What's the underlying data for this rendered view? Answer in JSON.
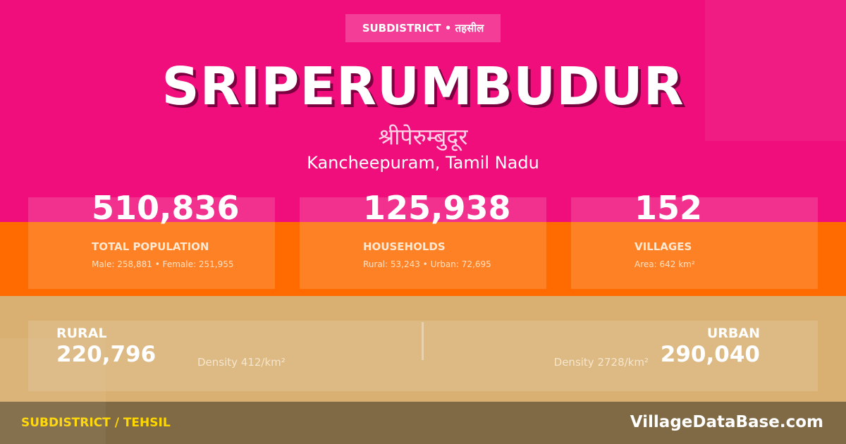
{
  "colors": {
    "pink": "#f00d7c",
    "orange": "#ff6b00",
    "tan": "#d9b072",
    "footer": "#806a45",
    "accent": "#ffd700"
  },
  "badge": "SUBDISTRICT • तहसील",
  "title": "SRIPERUMBUDUR",
  "title_hindi": "श्रीपेरुम्बुदूर",
  "location": "Kancheepuram, Tamil Nadu",
  "stats": [
    {
      "value": "510,836",
      "label": "TOTAL POPULATION",
      "detail": "Male: 258,881 • Female: 251,955"
    },
    {
      "value": "125,938",
      "label": "HOUSEHOLDS",
      "detail": "Rural: 53,243 • Urban: 72,695"
    },
    {
      "value": "152",
      "label": "VILLAGES",
      "detail": "Area: 642 km²"
    }
  ],
  "rural": {
    "label": "RURAL",
    "value": "220,796",
    "density": "Density 412/km²"
  },
  "urban": {
    "label": "URBAN",
    "value": "290,040",
    "density": "Density 2728/km²"
  },
  "footer": {
    "left": "SUBDISTRICT / TEHSIL",
    "right": "VillageDataBase.com"
  }
}
